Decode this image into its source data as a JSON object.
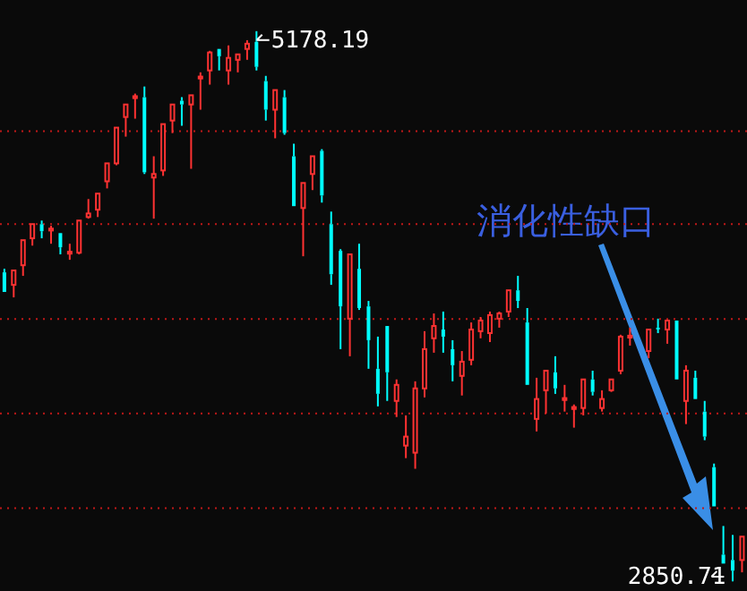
{
  "chart_data": {
    "type": "candlestick",
    "categories": [
      null,
      null,
      null,
      null,
      null,
      null,
      null,
      null,
      null,
      null,
      null,
      null,
      null,
      null,
      null,
      null,
      null,
      null,
      null,
      null,
      null,
      null,
      null,
      null,
      null,
      null,
      null,
      null,
      null,
      null,
      null,
      null,
      null,
      null,
      null,
      null,
      null,
      null,
      null,
      null,
      null,
      null,
      null,
      null,
      null,
      null,
      null,
      null,
      null,
      null,
      null,
      null,
      null,
      null,
      null,
      null,
      null,
      null,
      null,
      null,
      null,
      null,
      null,
      null,
      null,
      null,
      null,
      null,
      null,
      null,
      null,
      null,
      null,
      null,
      null,
      null,
      null,
      null,
      null,
      null
    ],
    "ohlc": [
      [
        4158,
        4173,
        4075,
        4075
      ],
      [
        4105,
        4166,
        4052,
        4166
      ],
      [
        4188,
        4294,
        4143,
        4294
      ],
      [
        4302,
        4362,
        4271,
        4362
      ],
      [
        4362,
        4377,
        4302,
        4332
      ],
      [
        4335,
        4355,
        4279,
        4343
      ],
      [
        4324,
        4324,
        4234,
        4264
      ],
      [
        4237,
        4279,
        4211,
        4245
      ],
      [
        4241,
        4377,
        4234,
        4377
      ],
      [
        4392,
        4468,
        4385,
        4407
      ],
      [
        4423,
        4491,
        4392,
        4491
      ],
      [
        4543,
        4619,
        4513,
        4619
      ],
      [
        4619,
        4770,
        4611,
        4770
      ],
      [
        4815,
        4868,
        4732,
        4868
      ],
      [
        4895,
        4914,
        4808,
        4903
      ],
      [
        4899,
        4944,
        4574,
        4581
      ],
      [
        4559,
        4649,
        4385,
        4574
      ],
      [
        4589,
        4785,
        4566,
        4785
      ],
      [
        4800,
        4868,
        4747,
        4868
      ],
      [
        4884,
        4899,
        4778,
        4868
      ],
      [
        4868,
        4907,
        4596,
        4907
      ],
      [
        4978,
        5004,
        4846,
        4986
      ],
      [
        5012,
        5095,
        4952,
        5088
      ],
      [
        5103,
        5103,
        5012,
        5072
      ],
      [
        5012,
        5118,
        4952,
        5065
      ],
      [
        5057,
        5080,
        5004,
        5080
      ],
      [
        5103,
        5140,
        5057,
        5125
      ],
      [
        5133,
        5178.19,
        5012,
        5027
      ],
      [
        4967,
        4989,
        4800,
        4846
      ],
      [
        4846,
        4929,
        4725,
        4929
      ],
      [
        4899,
        4929,
        4740,
        4747
      ],
      [
        4649,
        4702,
        4438,
        4438
      ],
      [
        4430,
        4536,
        4226,
        4536
      ],
      [
        4574,
        4649,
        4506,
        4649
      ],
      [
        4672,
        4679,
        4453,
        4483
      ],
      [
        4362,
        4415,
        4105,
        4150
      ],
      [
        4249,
        4256,
        3833,
        4014
      ],
      [
        3962,
        4234,
        3803,
        4234
      ],
      [
        4173,
        4279,
        3999,
        4007
      ],
      [
        4014,
        4037,
        3750,
        3871
      ],
      [
        3750,
        3886,
        3591,
        3644
      ],
      [
        3931,
        3931,
        3614,
        3735
      ],
      [
        3614,
        3705,
        3546,
        3682
      ],
      [
        3425,
        3553,
        3372,
        3463
      ],
      [
        3395,
        3697,
        3327,
        3667
      ],
      [
        3667,
        3909,
        3629,
        3833
      ],
      [
        3879,
        3984,
        3818,
        3931
      ],
      [
        3916,
        3992,
        3818,
        3886
      ],
      [
        3833,
        3871,
        3697,
        3765
      ],
      [
        3720,
        3825,
        3637,
        3780
      ],
      [
        3788,
        3946,
        3765,
        3916
      ],
      [
        3909,
        3969,
        3879,
        3954
      ],
      [
        3901,
        3992,
        3863,
        3977
      ],
      [
        3962,
        3992,
        3924,
        3984
      ],
      [
        3992,
        4082,
        3969,
        4082
      ],
      [
        4082,
        4143,
        4007,
        4037
      ],
      [
        3946,
        4007,
        3682,
        3682
      ],
      [
        3538,
        3712,
        3485,
        3622
      ],
      [
        3659,
        3742,
        3561,
        3742
      ],
      [
        3735,
        3803,
        3644,
        3667
      ],
      [
        3618,
        3682,
        3569,
        3626
      ],
      [
        3580,
        3599,
        3501,
        3588
      ],
      [
        3584,
        3705,
        3553,
        3705
      ],
      [
        3705,
        3742,
        3637,
        3652
      ],
      [
        3584,
        3659,
        3569,
        3622
      ],
      [
        3659,
        3705,
        3652,
        3705
      ],
      [
        3742,
        3894,
        3727,
        3886
      ],
      [
        3882,
        3924,
        3848,
        3890
      ],
      null,
      [
        3825,
        3916,
        3795,
        3916
      ],
      [
        3924,
        3962,
        3901,
        3920
      ],
      [
        3916,
        3954,
        3856,
        3954
      ],
      [
        3954,
        3954,
        3705,
        3705
      ],
      [
        3614,
        3765,
        3516,
        3742
      ],
      [
        3712,
        3742,
        3622,
        3622
      ],
      [
        3569,
        3614,
        3448,
        3463
      ],
      [
        3334,
        3349,
        3168,
        3168
      ],
      [
        2964,
        3085,
        2926,
        2926
      ],
      [
        2941,
        3047,
        2850.71,
        2896
      ],
      [
        2941,
        3040,
        2889,
        3040
      ]
    ],
    "colors": [
      "#00ffff",
      "#ff3232",
      "#ff3232",
      "#ff3232",
      "#00ffff",
      "#ff3232",
      "#00ffff",
      "#ff3232",
      "#ff3232",
      "#ff3232",
      "#ff3232",
      "#ff3232",
      "#ff3232",
      "#ff3232",
      "#ff3232",
      "#00ffff",
      "#ff3232",
      "#ff3232",
      "#ff3232",
      "#00ffff",
      "#ff3232",
      "#ff3232",
      "#ff3232",
      "#00ffff",
      "#ff3232",
      "#ff3232",
      "#ff3232",
      "#00ffff",
      "#00ffff",
      "#ff3232",
      "#00ffff",
      "#00ffff",
      "#ff3232",
      "#ff3232",
      "#00ffff",
      "#00ffff",
      "#00ffff",
      "#ff3232",
      "#00ffff",
      "#00ffff",
      "#00ffff",
      "#00ffff",
      "#ff3232",
      "#ff3232",
      "#ff3232",
      "#ff3232",
      "#ff3232",
      "#00ffff",
      "#00ffff",
      "#ff3232",
      "#ff3232",
      "#ff3232",
      "#ff3232",
      "#ff3232",
      "#ff3232",
      "#00ffff",
      "#00ffff",
      "#ff3232",
      "#ff3232",
      "#00ffff",
      "#ff3232",
      "#ff3232",
      "#ff3232",
      "#00ffff",
      "#ff3232",
      "#ff3232",
      "#ff3232",
      "#ff3232",
      null,
      "#ff3232",
      "#00ffff",
      "#ff3232",
      "#00ffff",
      "#ff3232",
      "#00ffff",
      "#00ffff",
      "#00ffff",
      "#00ffff",
      "#00ffff",
      "#ff3232"
    ],
    "ylim": [
      2810,
      5310
    ],
    "yticks": [
      {
        "value": 4755,
        "label": null
      },
      {
        "value": 4362,
        "label": null
      },
      {
        "value": 3961,
        "label": null
      },
      {
        "value": 3561,
        "label": null
      },
      {
        "value": 3160,
        "label": null
      }
    ],
    "grid": "y",
    "tick_labels": false,
    "annotations": [
      "5178.19",
      "2850.71",
      "消化性缺口"
    ]
  }
}
